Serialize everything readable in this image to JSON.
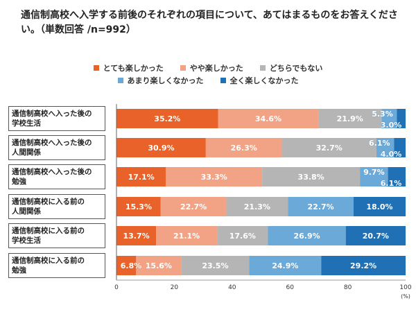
{
  "chart_data": {
    "type": "bar",
    "orientation": "horizontal-stacked-100",
    "title": "通信制高校へ入学する前後のそれぞれの項目について、あてはまるものをお答えください。（単数回答 /n=992）",
    "categories": [
      "通信制高校へ入った後の\n学校生活",
      "通信制高校へ入った後の\n人間関係",
      "通信制高校へ入った後の\n勉強",
      "通信制高校に入る前の\n人間関係",
      "通信制高校に入る前の\n学校生活",
      "通信制高校に入る前の\n勉強"
    ],
    "series": [
      {
        "name": "とても楽しかった",
        "color": "#E8622A",
        "values": [
          35.2,
          30.9,
          17.1,
          15.3,
          13.7,
          6.8
        ]
      },
      {
        "name": "やや楽しかった",
        "color": "#F2A385",
        "values": [
          34.6,
          26.3,
          33.3,
          22.7,
          21.1,
          15.6
        ]
      },
      {
        "name": "どちらでもない",
        "color": "#B5B5B5",
        "values": [
          21.9,
          32.7,
          33.8,
          21.3,
          17.6,
          23.5
        ]
      },
      {
        "name": "あまり楽しくなかった",
        "color": "#6BA9D8",
        "values": [
          5.3,
          6.1,
          9.7,
          22.7,
          26.9,
          24.9
        ]
      },
      {
        "name": "全く楽しくなかった",
        "color": "#1F70B5",
        "values": [
          3.0,
          4.0,
          6.1,
          18.0,
          20.7,
          29.2
        ]
      }
    ],
    "xlim": [
      0,
      100
    ],
    "xticks": [
      0,
      20,
      40,
      60,
      80,
      100
    ],
    "xunit": "(%)",
    "legend": "top-center",
    "grid": false
  }
}
